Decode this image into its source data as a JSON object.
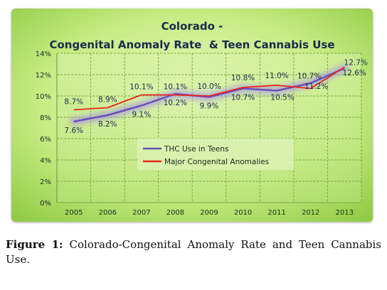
{
  "chart_data": {
    "type": "line",
    "title_line1": "Colorado -",
    "title_line2": "Congenital Anomaly Rate  & Teen Cannabis Use",
    "x": [
      "2005",
      "2006",
      "2007",
      "2008",
      "2009",
      "2010",
      "2011",
      "2012",
      "2013"
    ],
    "ylim": [
      0,
      14
    ],
    "yticks": [
      "0%",
      "2%",
      "4%",
      "6%",
      "8%",
      "10%",
      "12%",
      "14%"
    ],
    "ytick_values": [
      0,
      2,
      4,
      6,
      8,
      10,
      12,
      14
    ],
    "grid": true,
    "legend_position": "center",
    "series": [
      {
        "name": "THC Use in Teens",
        "color": "#6b4fb8",
        "values": [
          7.6,
          8.2,
          9.1,
          10.2,
          9.9,
          10.7,
          10.5,
          11.2,
          12.6
        ],
        "labels": [
          "7.6%",
          "8.2%",
          "9.1%",
          "10.2%",
          "9.9%",
          "10.7%",
          "10.5%",
          "11.2%",
          "12.6%"
        ]
      },
      {
        "name": "Major Congenital Anomalies",
        "color": "#e8261c",
        "values": [
          8.7,
          8.9,
          10.1,
          10.1,
          10.0,
          10.8,
          11.0,
          10.7,
          12.7
        ],
        "labels": [
          "8.7%",
          "8.9%",
          "10.1%",
          "10.1%",
          "10.0%",
          "10.8%",
          "11.0%",
          "10.7%",
          "12.7%"
        ]
      }
    ]
  },
  "caption": {
    "label": "Figure 1:",
    "text": "Colorado-Congenital Anomaly Rate and Teen Cannabis Use."
  }
}
